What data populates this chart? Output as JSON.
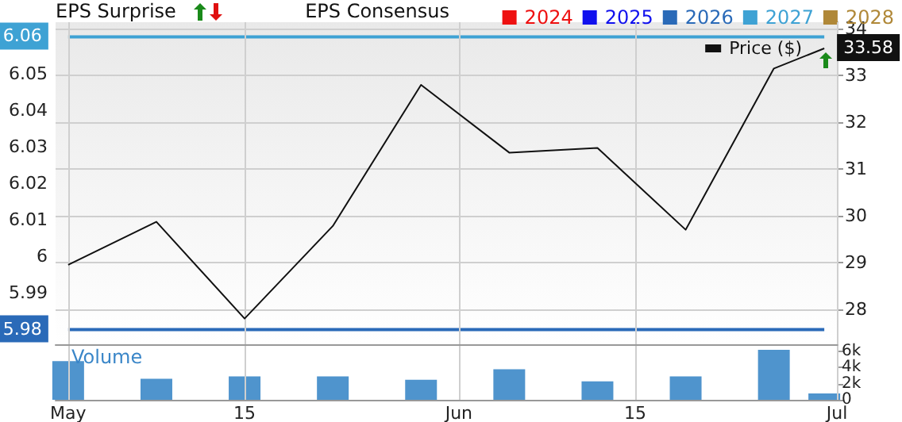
{
  "chart_data": [
    {
      "type": "line",
      "title": "EPS Surprise",
      "legend_title": "EPS Consensus",
      "x": [
        "--05-01",
        "--05-08",
        "--05-15",
        "--05-22",
        "--05-29",
        "--06-05",
        "--06-12",
        "--06-19",
        "--06-26",
        "--06-30"
      ],
      "xlim": [
        "--04-30",
        "--07-01"
      ],
      "xticks": [
        {
          "value": "--05-01",
          "label": null
        },
        {
          "value": "--05-15",
          "label": null
        },
        {
          "value": "--06-01",
          "label": null
        },
        {
          "value": "--06-15",
          "label": null
        },
        {
          "value": "--07-01",
          "label": null
        }
      ],
      "ylim": [
        5.976,
        6.064
      ],
      "yticks": [
        5.99,
        6,
        6.01,
        6.02,
        6.03,
        6.04,
        6.05
      ],
      "y2lim": [
        27.25,
        34.14
      ],
      "y2ticks": [
        28,
        29,
        30,
        31,
        32,
        33,
        34
      ],
      "tick_labels": "y",
      "grid": true,
      "legend": "top right",
      "marker": "none",
      "series": [
        {
          "name": "2024",
          "color": "#ee1111",
          "values": [
            null,
            null,
            null,
            null,
            null,
            null,
            null,
            null,
            null,
            null
          ]
        },
        {
          "name": "2025",
          "color": "#1111ee",
          "values": [
            null,
            null,
            null,
            null,
            null,
            null,
            null,
            null,
            null,
            null
          ]
        },
        {
          "name": "2026",
          "color": "#2a6ab8",
          "values": [
            5.98,
            5.98,
            5.98,
            5.98,
            5.98,
            5.98,
            5.98,
            5.98,
            5.98,
            5.98
          ],
          "value_labels": [
            "5.98",
            null,
            null,
            null,
            null,
            null,
            null,
            null,
            null,
            null
          ]
        },
        {
          "name": "2027",
          "color": "#3ea2d4",
          "values": [
            6.06,
            6.06,
            6.06,
            6.06,
            6.06,
            6.06,
            6.06,
            6.06,
            6.06,
            6.06
          ],
          "value_labels": [
            "6.06",
            null,
            null,
            null,
            null,
            null,
            null,
            null,
            null,
            null
          ]
        },
        {
          "name": "2028",
          "color": "#b08838",
          "values": [
            null,
            null,
            null,
            null,
            null,
            null,
            null,
            null,
            null,
            null
          ]
        },
        {
          "name": "Price ($)",
          "color": "#111111",
          "axis": "y2",
          "values": [
            28.95,
            29.87,
            27.8,
            29.78,
            32.8,
            31.35,
            31.45,
            29.7,
            33.15,
            33.58
          ],
          "value_labels": [
            null,
            null,
            null,
            null,
            null,
            null,
            null,
            null,
            null,
            "33.58"
          ]
        }
      ]
    },
    {
      "type": "bar",
      "title": "Volume",
      "x": [
        "--05-01",
        "--05-08",
        "--05-15",
        "--05-22",
        "--05-29",
        "--06-05",
        "--06-12",
        "--06-19",
        "--06-26",
        "--06-30"
      ],
      "xlim": [
        "--04-30",
        "--07-01"
      ],
      "xticks": [
        {
          "value": "--05-01",
          "label": "May"
        },
        {
          "value": "--05-15",
          "label": "15"
        },
        {
          "value": "--06-01",
          "label": "Jun"
        },
        {
          "value": "--06-15",
          "label": "15"
        },
        {
          "value": "--07-01",
          "label": "Jul"
        }
      ],
      "ylim": [
        0,
        6700
      ],
      "yticks": [
        0,
        {
          "value": 2000,
          "label": "2k"
        },
        {
          "value": 4000,
          "label": "4k"
        },
        {
          "value": 6000,
          "label": "6k"
        }
      ],
      "grid": "x",
      "color": "#4f94cd",
      "values": [
        4800,
        2600,
        2900,
        2900,
        2500,
        3800,
        2300,
        2900,
        6200,
        800
      ]
    }
  ]
}
